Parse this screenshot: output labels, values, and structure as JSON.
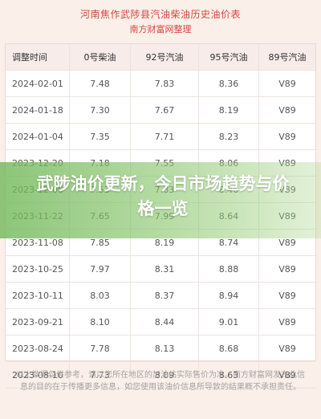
{
  "header": {
    "title": "河南焦作武陟县汽油柴油历史油价表",
    "subtitle": "南方财富网整理"
  },
  "table": {
    "columns": [
      "调整时间",
      "0号柴油",
      "92号汽油",
      "95号汽油",
      "89号汽油"
    ],
    "rows": [
      [
        "2024-02-01",
        "7.48",
        "7.83",
        "8.36",
        "V89"
      ],
      [
        "2024-01-18",
        "7.30",
        "7.67",
        "8.19",
        "V89"
      ],
      [
        "2024-01-04",
        "7.35",
        "7.71",
        "8.23",
        "V89"
      ],
      [
        "2023-12-20",
        "7.18",
        "7.55",
        "8.06",
        "V89"
      ],
      [
        "2023-12-06",
        "7.53",
        "7.83",
        "8.46",
        "V89"
      ],
      [
        "2023-11-22",
        "7.65",
        "7.99",
        "8.64",
        "V89"
      ],
      [
        "2023-11-08",
        "7.85",
        "8.19",
        "8.74",
        "V89"
      ],
      [
        "2023-10-25",
        "7.97",
        "8.31",
        "8.88",
        "V89"
      ],
      [
        "2023-10-11",
        "8.03",
        "8.37",
        "8.94",
        "V89"
      ],
      [
        "2023-09-21",
        "8.10",
        "8.44",
        "9.01",
        "V89"
      ],
      [
        "2023-08-24",
        "7.78",
        "8.13",
        "8.68",
        "V89"
      ],
      [
        "2023-08-10",
        "7.73",
        "8.09",
        "8.63",
        "V89"
      ]
    ]
  },
  "overlay": {
    "headline": "武陟油价更新，今日市场趋势与价格一览"
  },
  "footnote": "以上数据仅供参考，请以您所在地区的加油站实际售价为准。南方财富网发布此信息的目的在于传播更多信息，如您使用该油价信息所导致的结果概不承担责任。"
}
